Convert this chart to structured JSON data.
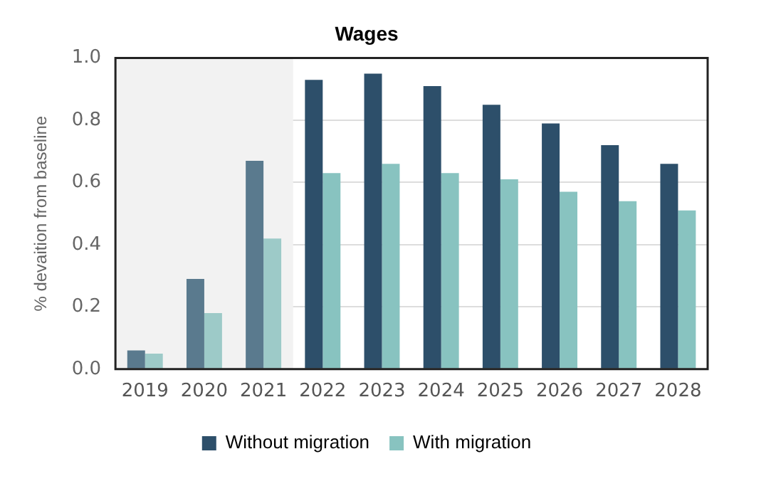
{
  "chart_data": {
    "type": "bar",
    "title": "Wages",
    "ylabel": "% devaition from baseline",
    "categories": [
      "2019",
      "2020",
      "2021",
      "2022",
      "2023",
      "2024",
      "2025",
      "2026",
      "2027",
      "2028"
    ],
    "series": [
      {
        "name": "Without migration",
        "color": "#2d4f6a",
        "colors": [
          "#5a7a8e",
          "#5a7a8e",
          "#5a7a8e",
          "#2d4f6a",
          "#2d4f6a",
          "#2d4f6a",
          "#2d4f6a",
          "#2d4f6a",
          "#2d4f6a",
          "#2d4f6a"
        ],
        "values": [
          0.06,
          0.29,
          0.67,
          0.93,
          0.95,
          0.91,
          0.85,
          0.79,
          0.72,
          0.66
        ]
      },
      {
        "name": "With migration",
        "color": "#88c3c0",
        "colors": [
          "#9dcac8",
          "#9dcac8",
          "#9dcac8",
          "#88c3c0",
          "#88c3c0",
          "#88c3c0",
          "#88c3c0",
          "#88c3c0",
          "#88c3c0",
          "#88c3c0"
        ],
        "values": [
          0.05,
          0.18,
          0.42,
          0.63,
          0.66,
          0.63,
          0.61,
          0.57,
          0.54,
          0.51
        ]
      }
    ],
    "ylim": [
      0,
      1
    ],
    "yticks": [
      {
        "value": 0,
        "label": "0.0"
      },
      0.2,
      0.4,
      0.6,
      0.8,
      {
        "value": 1,
        "label": "1.0"
      }
    ],
    "grid": "y",
    "legend": "bottom",
    "bands": [
      {
        "axis": "x",
        "from": "2019",
        "to": "2021",
        "color": "#f2f2f2"
      }
    ]
  }
}
